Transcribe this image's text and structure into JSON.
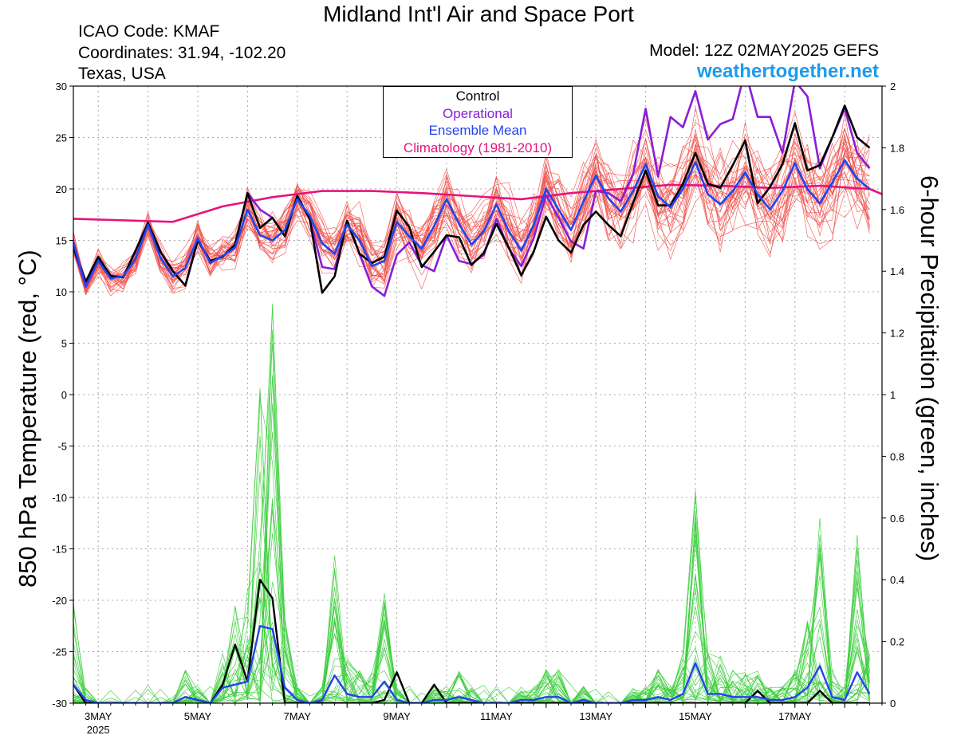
{
  "header": {
    "title": "Midland Int'l Air and Space Port",
    "icao": "ICAO Code: KMAF",
    "coordinates": "Coordinates: 31.94, -102.20",
    "region": "Texas, USA",
    "model": "Model: 12Z 02MAY2025 GEFS",
    "website": "weathertogether.net"
  },
  "colors": {
    "members": "#f0504a",
    "control": "#000000",
    "operational": "#8a1dd6",
    "ensemble_mean": "#2244f0",
    "climatology": "#e8127e",
    "precip_members": "#3dce3d",
    "website": "#1e9be8"
  },
  "chart_data": {
    "type": "line",
    "xlabel": "",
    "ylabel_left": "850 hPa Temperature (red, °C)",
    "ylabel_right": "6-hour Precipitation (green, inches)",
    "ylim_left": [
      -30,
      30
    ],
    "ylim_right": [
      0,
      2
    ],
    "yticks_left": [
      "30",
      "25",
      "20",
      "15",
      "10",
      "5",
      "0",
      "-5",
      "-10",
      "-15",
      "-20",
      "-25",
      "-30"
    ],
    "yticks_right": [
      "2",
      "1.8",
      "1.6",
      "1.4",
      "1.2",
      "1",
      "0.8",
      "0.6",
      "0.4",
      "0.2",
      "0"
    ],
    "xlim_hours": [
      0,
      390
    ],
    "xticks": [
      {
        "hour": 12,
        "label": "3MAY",
        "sub": "2025"
      },
      {
        "hour": 60,
        "label": "5MAY",
        "sub": ""
      },
      {
        "hour": 108,
        "label": "7MAY",
        "sub": ""
      },
      {
        "hour": 156,
        "label": "9MAY",
        "sub": ""
      },
      {
        "hour": 204,
        "label": "11MAY",
        "sub": ""
      },
      {
        "hour": 252,
        "label": "13MAY",
        "sub": ""
      },
      {
        "hour": 300,
        "label": "15MAY",
        "sub": ""
      },
      {
        "hour": 348,
        "label": "17MAY",
        "sub": ""
      }
    ],
    "grid": true,
    "legend": {
      "placement": "top-center",
      "entries": [
        "Control",
        "Operational",
        "Ensemble Mean",
        "Climatology (1981-2010)"
      ]
    },
    "series": [
      {
        "name": "Control",
        "axis": "left",
        "values": [
          14.3,
          11.0,
          13.4,
          11.5,
          11.4,
          14.0,
          16.7,
          13.9,
          12.0,
          10.6,
          15.0,
          13.0,
          13.4,
          14.6,
          19.6,
          16.2,
          17.2,
          15.4,
          19.3,
          17.1,
          9.9,
          11.5,
          16.9,
          13.7,
          12.8,
          13.4,
          17.9,
          16.3,
          12.4,
          13.9,
          15.5,
          15.3,
          12.6,
          13.8,
          16.6,
          14.3,
          11.6,
          13.9,
          17.3,
          15.0,
          13.8,
          16.5,
          17.8,
          16.5,
          15.4,
          18.7,
          21.8,
          18.4,
          18.4,
          20.5,
          23.5,
          20.5,
          20.1,
          22.3,
          24.7,
          18.6,
          20.2,
          22.4,
          26.4,
          21.8,
          22.3,
          25.0,
          28.1,
          25.0,
          24.0
        ]
      },
      {
        "name": "Operational",
        "axis": "left",
        "values": [
          14.3,
          10.5,
          13.3,
          11.6,
          11.4,
          14.0,
          16.7,
          13.9,
          12.0,
          10.6,
          15.0,
          13.0,
          13.4,
          14.6,
          19.6,
          18.0,
          17.2,
          15.4,
          19.3,
          17.1,
          12.4,
          12.2,
          16.9,
          13.7,
          10.5,
          9.6,
          13.6,
          14.8,
          12.6,
          12.0,
          15.5,
          13.0,
          12.7,
          13.6,
          17.1,
          14.2,
          12.5,
          15.2,
          19.4,
          17.2,
          14.9,
          14.2,
          19.8,
          19.6,
          18.8,
          21.5,
          27.8,
          21.2,
          27.0,
          26.0,
          29.5,
          24.8,
          26.3,
          26.8,
          31.5,
          27.0,
          27.0,
          23.5,
          30.5,
          29.0,
          22.0,
          25.0,
          27.8,
          23.5,
          22.0
        ]
      },
      {
        "name": "Ensemble Mean",
        "axis": "left",
        "values": [
          14.8,
          10.5,
          13.0,
          11.3,
          11.5,
          13.2,
          16.5,
          13.3,
          11.5,
          12.3,
          15.2,
          12.8,
          13.5,
          14.3,
          18.0,
          15.5,
          15.0,
          16.0,
          19.0,
          17.4,
          14.7,
          13.7,
          16.5,
          15.0,
          12.5,
          13.0,
          16.8,
          15.4,
          14.2,
          16.4,
          19.0,
          16.6,
          14.6,
          15.9,
          18.5,
          15.9,
          14.0,
          16.5,
          20.0,
          18.0,
          16.0,
          18.8,
          21.3,
          19.1,
          17.8,
          19.8,
          22.4,
          19.3,
          18.2,
          20.0,
          22.6,
          19.5,
          18.5,
          19.8,
          21.6,
          19.5,
          18.0,
          19.8,
          22.5,
          20.0,
          18.6,
          20.6,
          22.8,
          21.0,
          20.0
        ]
      },
      {
        "name": "Climatology (1981-2010)",
        "axis": "left",
        "x_hours": [
          0,
          48,
          72,
          96,
          120,
          144,
          168,
          192,
          216,
          240,
          264,
          288,
          312,
          336,
          360,
          384,
          390
        ],
        "values": [
          17.1,
          16.8,
          18.3,
          19.2,
          19.8,
          19.8,
          19.6,
          19.3,
          19.0,
          19.6,
          20.0,
          20.4,
          20.3,
          20.1,
          20.3,
          20.0,
          19.5
        ]
      },
      {
        "name": "Control precipitation",
        "axis": "right",
        "values": [
          0.06,
          0,
          0,
          0,
          0,
          0,
          0,
          0,
          0,
          0.02,
          0.01,
          0,
          0.06,
          0.19,
          0.07,
          0.4,
          0.34,
          0,
          0,
          0,
          0,
          0,
          0,
          0,
          0,
          0.01,
          0.1,
          0,
          0,
          0.06,
          0,
          0,
          0,
          0,
          0,
          0,
          0,
          0,
          0,
          0,
          0,
          0,
          0,
          0,
          0,
          0,
          0,
          0,
          0,
          0,
          0,
          0,
          0,
          0,
          0,
          0.04,
          0,
          0,
          0,
          0,
          0.04,
          0,
          0,
          0,
          0
        ]
      },
      {
        "name": "Ensemble mean precipitation",
        "axis": "right",
        "values": [
          0.06,
          0.01,
          0,
          0,
          0,
          0,
          0,
          0,
          0,
          0.02,
          0.01,
          0,
          0.05,
          0.06,
          0.07,
          0.25,
          0.24,
          0.05,
          0.01,
          0,
          0.01,
          0.09,
          0.03,
          0.02,
          0.02,
          0.07,
          0.01,
          0,
          0,
          0.01,
          0.01,
          0.02,
          0.01,
          0,
          0,
          0,
          0.01,
          0.01,
          0.02,
          0.02,
          0,
          0.01,
          0,
          0,
          0,
          0.01,
          0.01,
          0.02,
          0.01,
          0.03,
          0.13,
          0.03,
          0.03,
          0.02,
          0.02,
          0.02,
          0.01,
          0.01,
          0.02,
          0.05,
          0.12,
          0.02,
          0.01,
          0.1,
          0.03
        ]
      }
    ]
  }
}
